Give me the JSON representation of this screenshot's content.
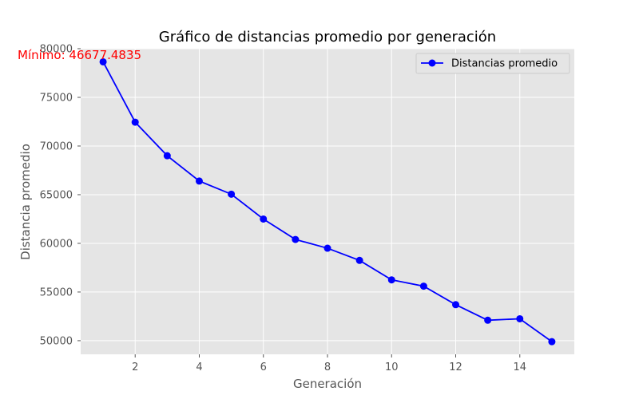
{
  "chart_data": {
    "type": "line",
    "title": "Gráfico de distancias promedio por generación",
    "xlabel": "Generación",
    "ylabel": "Distancia promedio",
    "x_ticks": [
      2,
      4,
      6,
      8,
      10,
      12,
      14
    ],
    "y_ticks": [
      50000,
      55000,
      60000,
      65000,
      70000,
      75000,
      80000
    ],
    "xlim": [
      0.3,
      15.7
    ],
    "ylim": [
      48600,
      80000
    ],
    "grid": true,
    "legend_position": "top-right",
    "annotation": "Mínimo: 46677.4835",
    "series": [
      {
        "name": "Distancias promedio",
        "color": "#0000ff",
        "marker": "circle",
        "x": [
          1,
          2,
          3,
          4,
          5,
          6,
          7,
          8,
          9,
          10,
          11,
          12,
          13,
          14,
          15
        ],
        "values": [
          78650,
          72450,
          69000,
          66400,
          65050,
          62500,
          60400,
          59500,
          58250,
          56250,
          55600,
          53700,
          52100,
          52250,
          49900
        ]
      }
    ],
    "colors": {
      "plot_background": "#e5e5e5",
      "grid": "#ffffff",
      "annotation": "#ff0000"
    }
  }
}
